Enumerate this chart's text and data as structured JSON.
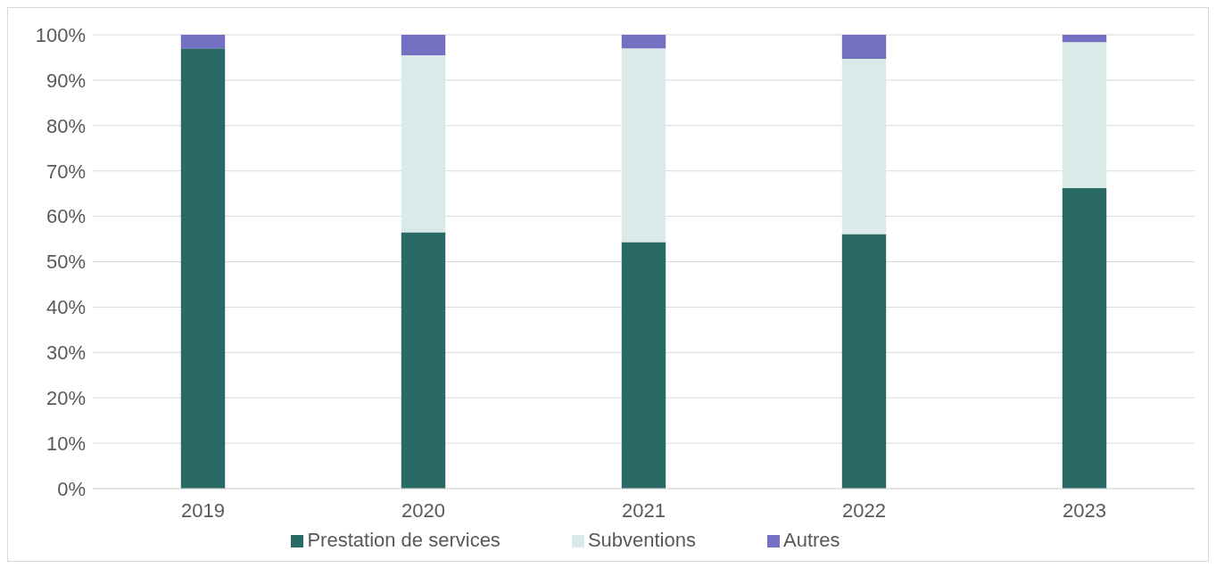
{
  "chart_data": {
    "type": "bar",
    "stacked": true,
    "categories": [
      "2019",
      "2020",
      "2021",
      "2022",
      "2023"
    ],
    "series": [
      {
        "name": "Prestation de services",
        "color": "#2a6a66",
        "values": [
          97,
          56.5,
          54.3,
          56.1,
          66.2
        ]
      },
      {
        "name": "Subventions",
        "color": "#d9eae8",
        "values": [
          0,
          39,
          42.7,
          38.6,
          32.2
        ]
      },
      {
        "name": "Autres",
        "color": "#7470c2",
        "values": [
          3,
          4.5,
          3,
          5.3,
          1.6
        ]
      }
    ],
    "ylim": [
      0,
      100
    ],
    "yticks": [
      {
        "value": 0,
        "label": "0%"
      },
      {
        "value": 10,
        "label": "10%"
      },
      {
        "value": 20,
        "label": "20%"
      },
      {
        "value": 30,
        "label": "30%"
      },
      {
        "value": 40,
        "label": "40%"
      },
      {
        "value": 50,
        "label": "50%"
      },
      {
        "value": 60,
        "label": "60%"
      },
      {
        "value": 70,
        "label": "70%"
      },
      {
        "value": 80,
        "label": "80%"
      },
      {
        "value": 90,
        "label": "90%"
      },
      {
        "value": 100,
        "label": "100%"
      }
    ],
    "grid": "y",
    "legend": "bottom"
  }
}
